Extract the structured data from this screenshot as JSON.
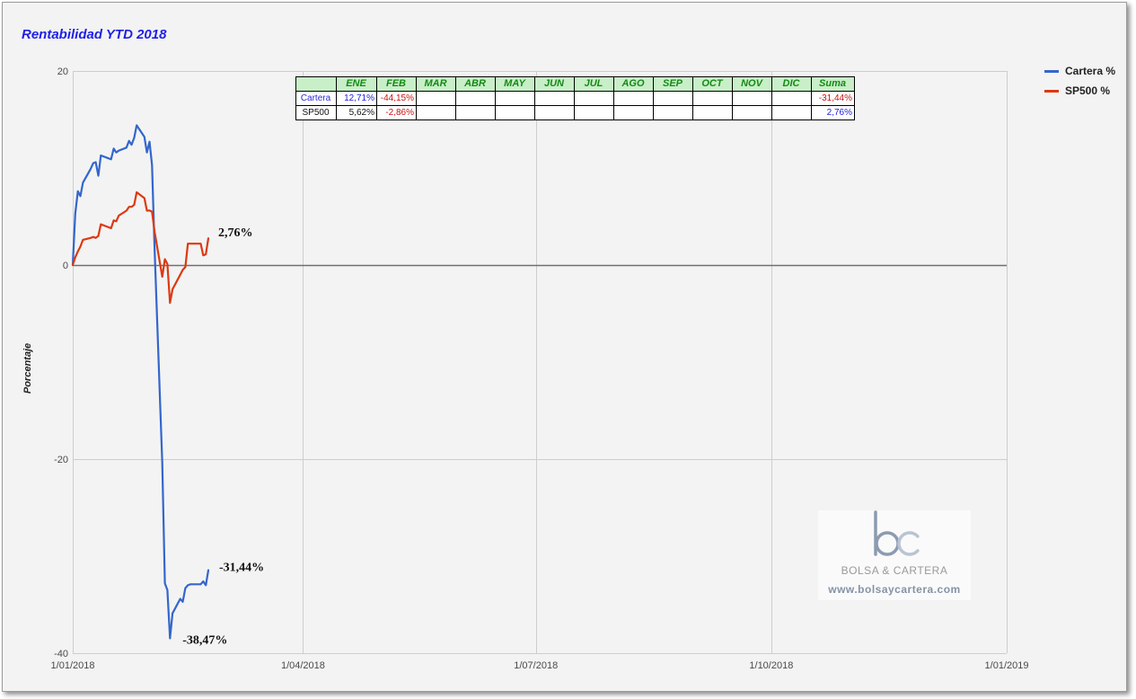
{
  "chart_data": {
    "type": "line",
    "title": "Rentabilidad YTD 2018",
    "ylabel": "Porcentaje",
    "ylim": [
      -40,
      20
    ],
    "yticks": [
      20,
      0,
      -20,
      -40
    ],
    "xlim": [
      "2018-01-01",
      "2019-01-01"
    ],
    "xticks": [
      "1/01/2018",
      "1/04/2018",
      "1/07/2018",
      "1/10/2018",
      "1/01/2019"
    ],
    "grid": true,
    "legend": "right",
    "series": [
      {
        "name": "Cartera %",
        "color": "#3366cc",
        "points": [
          [
            "2018-01-01",
            0
          ],
          [
            "2018-01-02",
            5.3
          ],
          [
            "2018-01-03",
            7.6
          ],
          [
            "2018-01-04",
            7.1
          ],
          [
            "2018-01-05",
            8.5
          ],
          [
            "2018-01-08",
            9.9
          ],
          [
            "2018-01-09",
            10.5
          ],
          [
            "2018-01-10",
            10.6
          ],
          [
            "2018-01-11",
            9.2
          ],
          [
            "2018-01-12",
            11.3
          ],
          [
            "2018-01-16",
            10.9
          ],
          [
            "2018-01-17",
            12.0
          ],
          [
            "2018-01-18",
            11.6
          ],
          [
            "2018-01-19",
            11.8
          ],
          [
            "2018-01-22",
            12.1
          ],
          [
            "2018-01-23",
            12.8
          ],
          [
            "2018-01-24",
            12.4
          ],
          [
            "2018-01-25",
            13.1
          ],
          [
            "2018-01-26",
            14.4
          ],
          [
            "2018-01-29",
            13.2
          ],
          [
            "2018-01-30",
            11.6
          ],
          [
            "2018-01-31",
            12.71
          ],
          [
            "2018-02-01",
            10.3
          ],
          [
            "2018-02-02",
            1.5
          ],
          [
            "2018-02-05",
            -20.4
          ],
          [
            "2018-02-06",
            -32.8
          ],
          [
            "2018-02-07",
            -33.5
          ],
          [
            "2018-02-08",
            -38.47
          ],
          [
            "2018-02-09",
            -35.9
          ],
          [
            "2018-02-12",
            -34.4
          ],
          [
            "2018-02-13",
            -34.7
          ],
          [
            "2018-02-14",
            -33.3
          ],
          [
            "2018-02-15",
            -33.0
          ],
          [
            "2018-02-16",
            -32.9
          ],
          [
            "2018-02-20",
            -32.9
          ],
          [
            "2018-02-21",
            -32.6
          ],
          [
            "2018-02-22",
            -33.0
          ],
          [
            "2018-02-23",
            -31.44
          ]
        ]
      },
      {
        "name": "SP500 %",
        "color": "#dc3912",
        "points": [
          [
            "2018-01-01",
            0
          ],
          [
            "2018-01-02",
            0.8
          ],
          [
            "2018-01-03",
            1.4
          ],
          [
            "2018-01-04",
            1.9
          ],
          [
            "2018-01-05",
            2.6
          ],
          [
            "2018-01-08",
            2.8
          ],
          [
            "2018-01-09",
            2.9
          ],
          [
            "2018-01-10",
            2.8
          ],
          [
            "2018-01-11",
            3.0
          ],
          [
            "2018-01-12",
            4.2
          ],
          [
            "2018-01-16",
            3.8
          ],
          [
            "2018-01-17",
            4.6
          ],
          [
            "2018-01-18",
            4.5
          ],
          [
            "2018-01-19",
            5.1
          ],
          [
            "2018-01-22",
            5.6
          ],
          [
            "2018-01-23",
            6.0
          ],
          [
            "2018-01-24",
            6.0
          ],
          [
            "2018-01-25",
            6.2
          ],
          [
            "2018-01-26",
            7.5
          ],
          [
            "2018-01-29",
            6.9
          ],
          [
            "2018-01-30",
            5.6
          ],
          [
            "2018-01-31",
            5.62
          ],
          [
            "2018-02-01",
            5.5
          ],
          [
            "2018-02-02",
            3.4
          ],
          [
            "2018-02-05",
            -1.2
          ],
          [
            "2018-02-06",
            0.6
          ],
          [
            "2018-02-07",
            0.1
          ],
          [
            "2018-02-08",
            -3.9
          ],
          [
            "2018-02-09",
            -2.5
          ],
          [
            "2018-02-12",
            -1.0
          ],
          [
            "2018-02-13",
            -0.5
          ],
          [
            "2018-02-14",
            -0.2
          ],
          [
            "2018-02-15",
            2.2
          ],
          [
            "2018-02-16",
            2.2
          ],
          [
            "2018-02-20",
            2.2
          ],
          [
            "2018-02-21",
            1.0
          ],
          [
            "2018-02-22",
            1.1
          ],
          [
            "2018-02-23",
            2.76
          ]
        ]
      }
    ],
    "annotations": [
      {
        "text": "2,76%",
        "x": "2018-02-23",
        "y": 2.76
      },
      {
        "text": "-31,44%",
        "x": "2018-02-23",
        "y": -31.44
      },
      {
        "text": "-38,47%",
        "x": "2018-02-08",
        "y": -38.47
      }
    ]
  },
  "colors": {
    "title": "#1f1fe8"
  },
  "table": {
    "headers": [
      "",
      "ENE",
      "FEB",
      "MAR",
      "ABR",
      "MAY",
      "JUN",
      "JUL",
      "AGO",
      "SEP",
      "OCT",
      "NOV",
      "DIC",
      "Suma"
    ],
    "rows": [
      {
        "label": "Cartera",
        "label_color": "#2b2bd0",
        "cells": [
          {
            "text": "12,71%",
            "color": "#1a1ae0"
          },
          {
            "text": "-44,15%",
            "color": "#cc1111"
          },
          {
            "text": ""
          },
          {
            "text": ""
          },
          {
            "text": ""
          },
          {
            "text": ""
          },
          {
            "text": ""
          },
          {
            "text": ""
          },
          {
            "text": ""
          },
          {
            "text": ""
          },
          {
            "text": ""
          },
          {
            "text": ""
          },
          {
            "text": "-31,44%",
            "color": "#cc1111"
          }
        ]
      },
      {
        "label": "SP500",
        "label_color": "#111111",
        "cells": [
          {
            "text": "5,62%",
            "color": "#111111"
          },
          {
            "text": "-2,86%",
            "color": "#cc1111"
          },
          {
            "text": ""
          },
          {
            "text": ""
          },
          {
            "text": ""
          },
          {
            "text": ""
          },
          {
            "text": ""
          },
          {
            "text": ""
          },
          {
            "text": ""
          },
          {
            "text": ""
          },
          {
            "text": ""
          },
          {
            "text": ""
          },
          {
            "text": "2,76%",
            "color": "#1a1ae0"
          }
        ]
      }
    ]
  },
  "watermark": {
    "logo_text": "bc",
    "name": "BOLSA & CARTERA",
    "url": "www.bolsaycartera.com"
  }
}
